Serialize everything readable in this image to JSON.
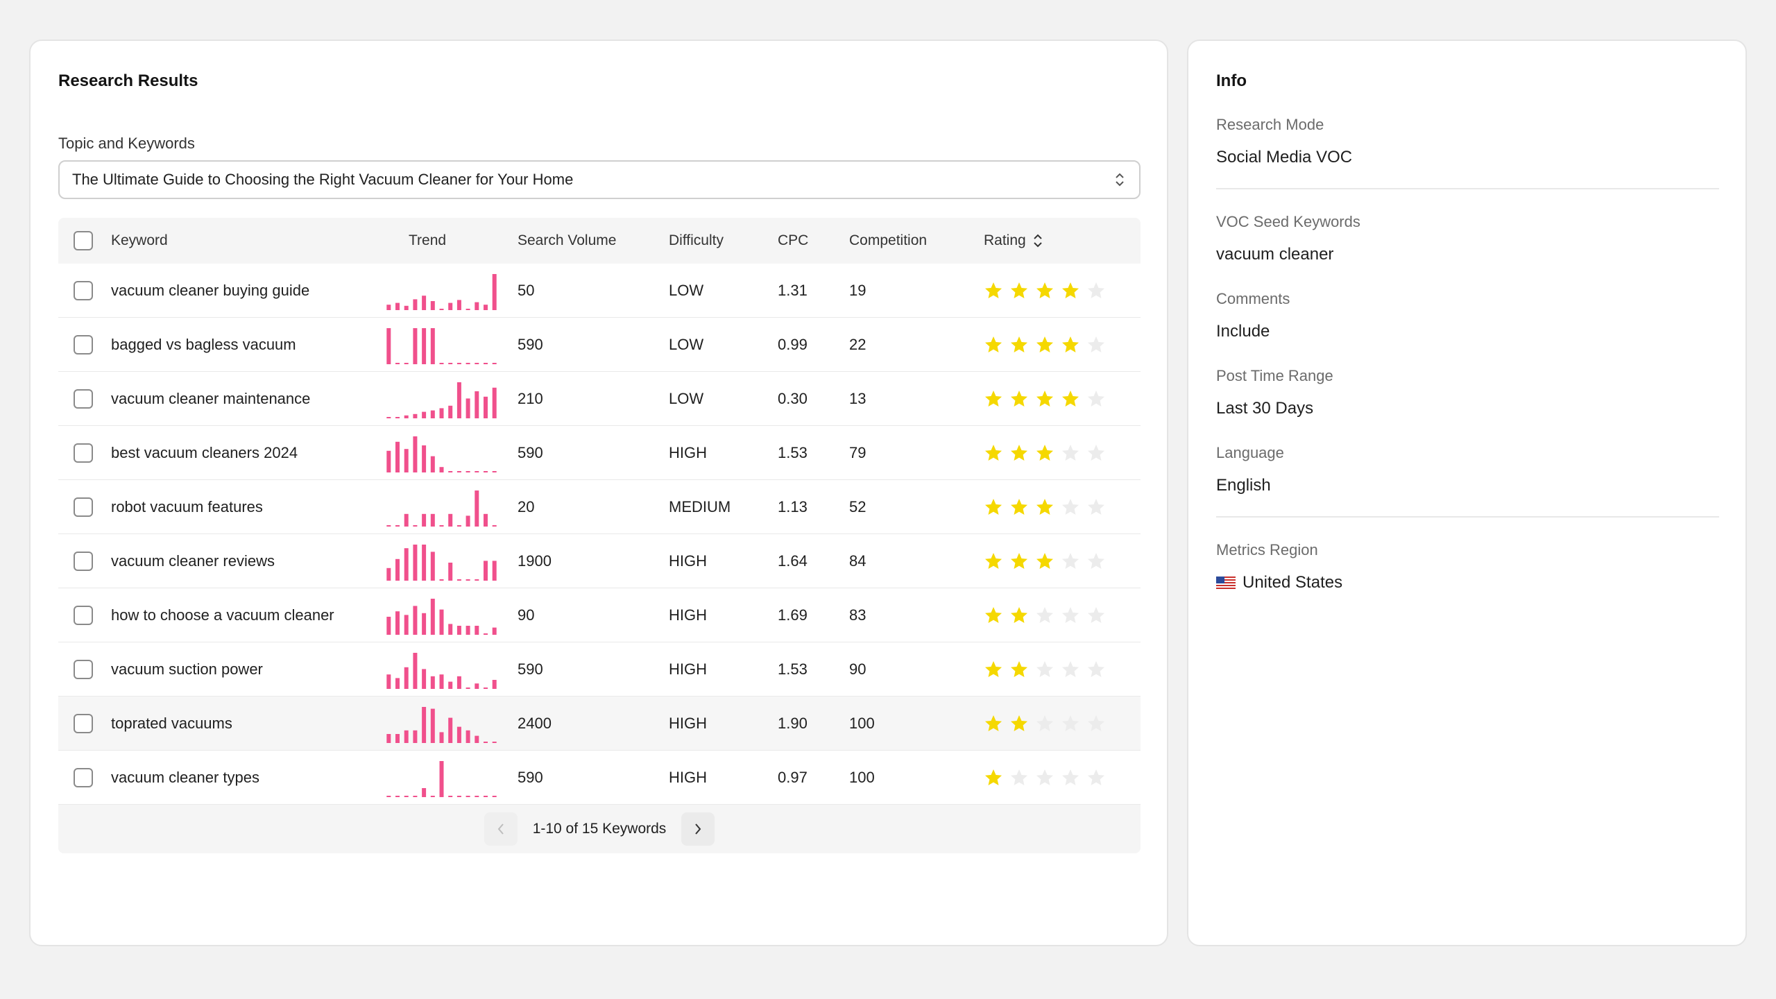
{
  "results": {
    "title": "Research Results",
    "topic_label": "Topic and Keywords",
    "topic_value": "The Ultimate Guide to Choosing the Right Vacuum Cleaner for Your Home",
    "columns": {
      "keyword": "Keyword",
      "trend": "Trend",
      "volume": "Search Volume",
      "difficulty": "Difficulty",
      "cpc": "CPC",
      "competition": "Competition",
      "rating": "Rating"
    },
    "rows": [
      {
        "keyword": "vacuum cleaner buying guide",
        "volume": "50",
        "difficulty": "LOW",
        "cpc": "1.31",
        "competition": "19",
        "rating": 4,
        "trend": [
          0.15,
          0.2,
          0.12,
          0.3,
          0.4,
          0.25,
          0.0,
          0.2,
          0.28,
          0.0,
          0.22,
          0.15,
          1.0
        ]
      },
      {
        "keyword": "bagged vs bagless vacuum",
        "volume": "590",
        "difficulty": "LOW",
        "cpc": "0.99",
        "competition": "22",
        "rating": 4,
        "trend": [
          1.0,
          0.0,
          0.0,
          1.0,
          1.0,
          1.0,
          0.0,
          0.0,
          0.0,
          0.0,
          0.0,
          0.0,
          0.0
        ]
      },
      {
        "keyword": "vacuum cleaner maintenance",
        "volume": "210",
        "difficulty": "LOW",
        "cpc": "0.30",
        "competition": "13",
        "rating": 4,
        "trend": [
          0.0,
          0.0,
          0.08,
          0.12,
          0.18,
          0.22,
          0.28,
          0.35,
          1.0,
          0.55,
          0.75,
          0.6,
          0.85
        ]
      },
      {
        "keyword": "best vacuum cleaners 2024",
        "volume": "590",
        "difficulty": "HIGH",
        "cpc": "1.53",
        "competition": "79",
        "rating": 3,
        "trend": [
          0.6,
          0.85,
          0.65,
          1.0,
          0.75,
          0.45,
          0.15,
          0.0,
          0.0,
          0.0,
          0.0,
          0.0,
          0.0
        ]
      },
      {
        "keyword": "robot vacuum features",
        "volume": "20",
        "difficulty": "MEDIUM",
        "cpc": "1.13",
        "competition": "52",
        "rating": 3,
        "trend": [
          0.0,
          0.0,
          0.35,
          0.0,
          0.35,
          0.35,
          0.0,
          0.35,
          0.0,
          0.3,
          1.0,
          0.35,
          0.0
        ]
      },
      {
        "keyword": "vacuum cleaner reviews",
        "volume": "1900",
        "difficulty": "HIGH",
        "cpc": "1.64",
        "competition": "84",
        "rating": 3,
        "trend": [
          0.35,
          0.6,
          0.9,
          1.0,
          1.0,
          0.8,
          0.0,
          0.5,
          0.0,
          0.0,
          0.0,
          0.55,
          0.55
        ]
      },
      {
        "keyword": "how to choose a vacuum cleaner",
        "volume": "90",
        "difficulty": "HIGH",
        "cpc": "1.69",
        "competition": "83",
        "rating": 2,
        "trend": [
          0.5,
          0.65,
          0.55,
          0.8,
          0.6,
          1.0,
          0.7,
          0.3,
          0.25,
          0.25,
          0.25,
          0.0,
          0.2
        ]
      },
      {
        "keyword": "vacuum suction power",
        "volume": "590",
        "difficulty": "HIGH",
        "cpc": "1.53",
        "competition": "90",
        "rating": 2,
        "trend": [
          0.4,
          0.3,
          0.6,
          1.0,
          0.55,
          0.35,
          0.4,
          0.2,
          0.35,
          0.0,
          0.15,
          0.0,
          0.25
        ]
      },
      {
        "keyword": "toprated vacuums",
        "volume": "2400",
        "difficulty": "HIGH",
        "cpc": "1.90",
        "competition": "100",
        "rating": 2,
        "trend": [
          0.25,
          0.25,
          0.35,
          0.35,
          1.0,
          0.95,
          0.3,
          0.7,
          0.45,
          0.35,
          0.2,
          0.0,
          0.0
        ]
      },
      {
        "keyword": "vacuum cleaner types",
        "volume": "590",
        "difficulty": "HIGH",
        "cpc": "0.97",
        "competition": "100",
        "rating": 1,
        "trend": [
          0.0,
          0.0,
          0.0,
          0.0,
          0.25,
          0.0,
          1.0,
          0.0,
          0.0,
          0.0,
          0.0,
          0.0,
          0.0
        ]
      }
    ],
    "pagination": "1-10 of 15 Keywords"
  },
  "info": {
    "title": "Info",
    "research_mode_label": "Research Mode",
    "research_mode_value": "Social Media VOC",
    "seed_label": "VOC Seed Keywords",
    "seed_value": "vacuum cleaner",
    "comments_label": "Comments",
    "comments_value": "Include",
    "time_label": "Post Time Range",
    "time_value": "Last 30 Days",
    "language_label": "Language",
    "language_value": "English",
    "region_label": "Metrics Region",
    "region_value": "United States",
    "region_flag_icon": "us-flag-icon"
  },
  "colors": {
    "trend_bar": "#f0508c",
    "star_on": "#f5d800",
    "star_off": "#ececec"
  }
}
